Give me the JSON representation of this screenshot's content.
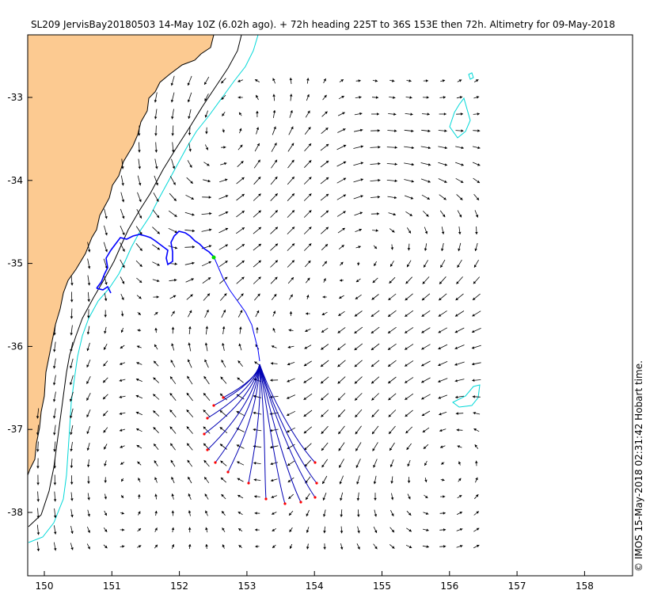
{
  "title": "SL209 JervisBay20180503 14-May 10Z (6.02h ago). + 72h heading 225T to 36S 153E then 72h. Altimetry for 09-May-2018",
  "credit": "© IMOS 15-May-2018 02:31:42 Hobart time.",
  "x_ticks": [
    "150",
    "151",
    "152",
    "153",
    "154",
    "155",
    "156",
    "157",
    "158"
  ],
  "y_ticks": [
    "-33",
    "-34",
    "-35",
    "-36",
    "-37",
    "-38"
  ],
  "colors": {
    "land": "#fcca91",
    "coast_line": "#000000",
    "isobath": "#00d8d8",
    "glider_track": "#0000ff",
    "forecast_track": "#0000b4",
    "endpoint": "#ff0000",
    "current_position": "#00dd00",
    "vectors": "#000000"
  }
}
